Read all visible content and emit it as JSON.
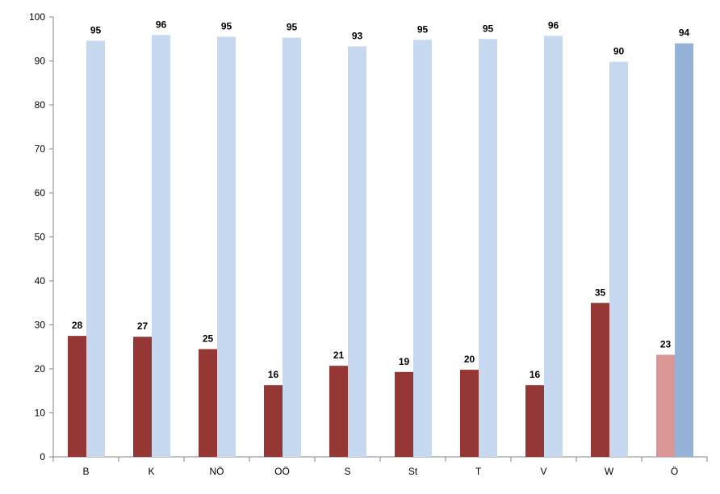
{
  "chart_data": {
    "type": "bar",
    "categories": [
      "B",
      "K",
      "NÖ",
      "OÖ",
      "S",
      "St",
      "T",
      "V",
      "W",
      "Ö"
    ],
    "series": [
      {
        "values": [
          27.5,
          27.3,
          24.5,
          16.3,
          20.7,
          19.3,
          19.8,
          16.3,
          35.0,
          23.2
        ],
        "data_labels": [
          "28",
          "27",
          "25",
          "16",
          "21",
          "19",
          "20",
          "16",
          "35",
          "23"
        ]
      },
      {
        "values": [
          94.6,
          95.9,
          95.5,
          95.3,
          93.3,
          94.8,
          95.0,
          95.7,
          89.8,
          94.0
        ],
        "data_labels": [
          "95",
          "96",
          "95",
          "95",
          "93",
          "95",
          "95",
          "96",
          "90",
          "94"
        ]
      }
    ],
    "colors": {
      "series_1": "#953735",
      "series_2": "#c6d9f1",
      "series_1_total": "#d99694",
      "series_2_total": "#95b3d7",
      "axis": "#868686"
    },
    "ylim": [
      0,
      100
    ],
    "y_ticks": [
      0,
      10,
      20,
      30,
      40,
      50,
      60,
      70,
      80,
      90,
      100
    ],
    "grid": false,
    "legend": "none",
    "title": "",
    "xlabel": "",
    "ylabel": ""
  }
}
